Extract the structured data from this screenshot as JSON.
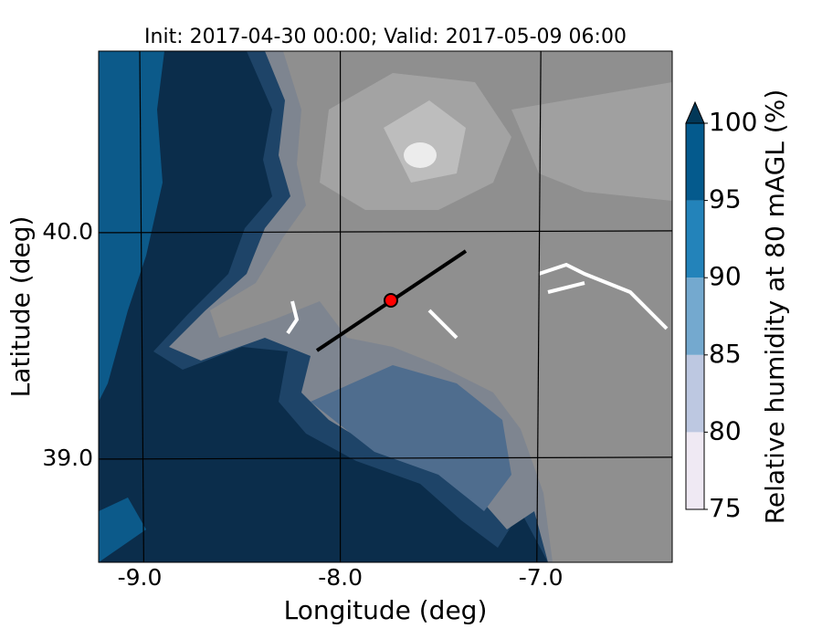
{
  "title": "Init: 2017-04-30 00:00; Valid: 2017-05-09 06:00",
  "x_axis": {
    "label": "Longitude (deg)",
    "lim": [
      -9.205,
      -6.345
    ],
    "ticks": [
      {
        "value": -9,
        "label": "-9.0"
      },
      {
        "value": -8,
        "label": "-8.0"
      },
      {
        "value": -7,
        "label": "-7.0"
      }
    ]
  },
  "y_axis": {
    "label": "Latitude (deg)",
    "lim": [
      38.544,
      40.802
    ],
    "ticks": [
      {
        "value": 39,
        "label": "39.0"
      },
      {
        "value": 40,
        "label": "40.0"
      }
    ]
  },
  "colorbar": {
    "label": "Relative humidity at 80 mAGL (%)",
    "lim": [
      75,
      100
    ],
    "ticks": [
      75,
      80,
      85,
      90,
      95,
      100
    ],
    "colors": [
      "#efe9f3",
      "#bdc8e1",
      "#74a9cf",
      "#2383ba",
      "#045a8d"
    ],
    "extend_color": "#023858"
  }
}
